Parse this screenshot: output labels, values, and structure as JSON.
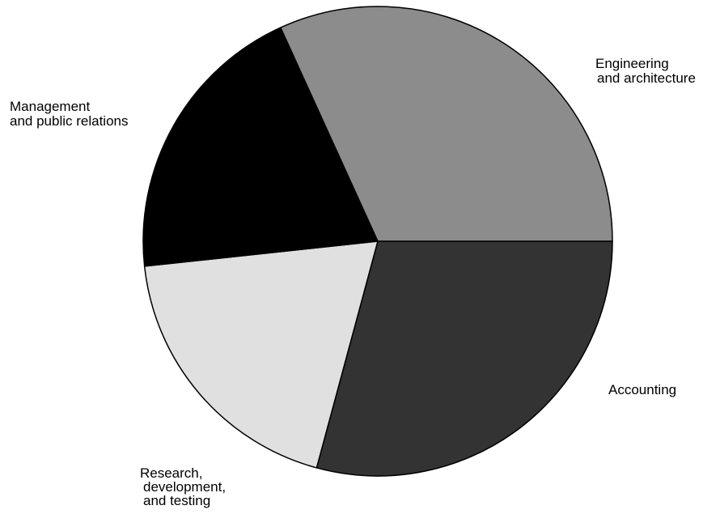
{
  "chart_data": {
    "type": "pie",
    "title": "",
    "slices": [
      {
        "label_lines": [
          "Engineering",
          "and architecture"
        ],
        "value": 29.2,
        "color": "#333333"
      },
      {
        "label_lines": [
          "Accounting"
        ],
        "value": 19.1,
        "color": "#e0e0e0"
      },
      {
        "label_lines": [
          "Research,",
          "development,",
          "and testing"
        ],
        "value": 19.9,
        "color": "#000000"
      },
      {
        "label_lines": [
          "Management",
          "and public relations"
        ],
        "value": 31.8,
        "color": "#8c8c8c"
      }
    ],
    "start_angle_deg": 0,
    "direction": "clockwise",
    "legend": "none"
  }
}
